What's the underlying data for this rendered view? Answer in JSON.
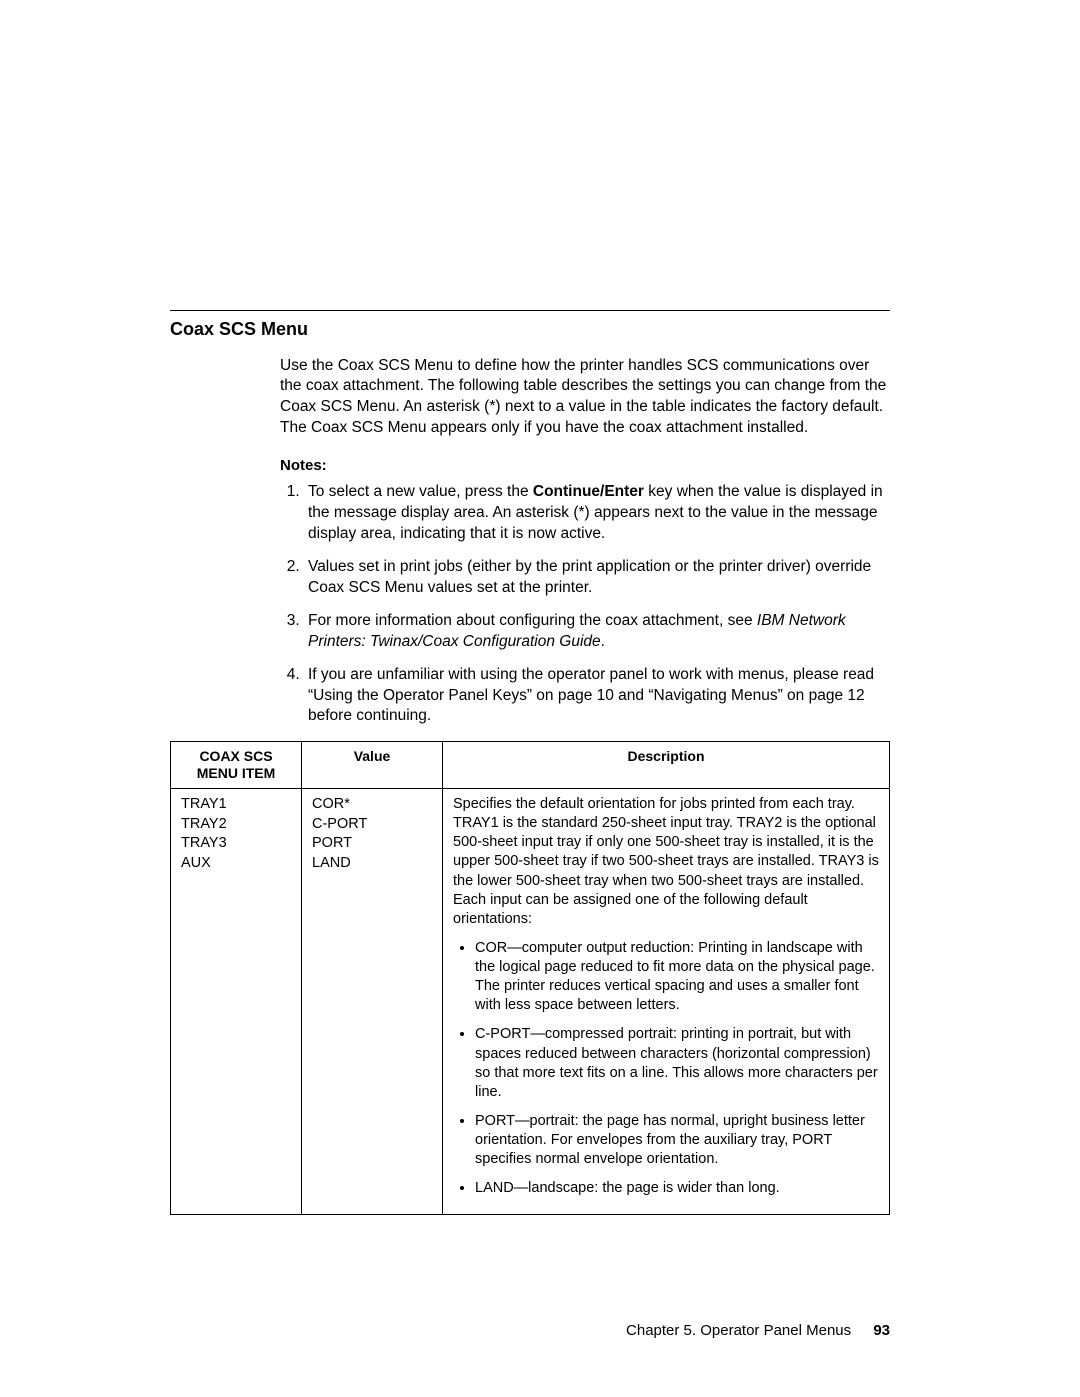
{
  "section": {
    "title": "Coax SCS Menu",
    "intro": "Use the Coax SCS Menu to define how the printer handles SCS communications over the coax attachment.  The following table describes the settings you can change from the Coax SCS Menu.  An asterisk (*) next to a value in the table indicates the factory default.  The Coax SCS Menu appears only if you have the coax attachment installed."
  },
  "notes": {
    "label": "Notes:",
    "items": {
      "n1a": "To select a new value, press the ",
      "n1b": "Continue/Enter",
      "n1c": " key when the value is displayed in the message display area.  An asterisk (*) appears next to the value in the message display area, indicating that it is now active.",
      "n2": "Values set in print jobs (either by the print application or the printer driver) override Coax SCS Menu values set at the printer.",
      "n3a": "For more information about configuring the coax attachment, see ",
      "n3b": "IBM Network Printers: Twinax/Coax Configuration Guide",
      "n3c": ".",
      "n4": "If you are unfamiliar with using the operator panel to work with menus, please read “Using the Operator Panel Keys” on page  10 and “Navigating Menus” on page  12 before continuing."
    }
  },
  "table": {
    "headers": {
      "col1a": "COAX SCS",
      "col1b": "MENU ITEM",
      "col2": "Value",
      "col3": "Description"
    },
    "row1": {
      "menu": {
        "l1": "TRAY1",
        "l2": "TRAY2",
        "l3": "TRAY3",
        "l4": "AUX"
      },
      "value": {
        "l1": "COR*",
        "l2": "C-PORT",
        "l3": "PORT",
        "l4": "LAND"
      },
      "desc_para": "Specifies the default orientation for jobs printed from each tray.  TRAY1 is the standard 250-sheet input tray.  TRAY2 is the optional 500-sheet input tray if only one 500-sheet tray is installed, it is the upper 500-sheet tray if two 500-sheet trays are installed.  TRAY3 is the lower 500-sheet tray when two 500-sheet trays are installed.  Each input can be assigned one of the following default orientations:",
      "bullets": {
        "b1": "COR—computer output reduction:  Printing in landscape with the logical page reduced to fit more data on the physical page.  The printer reduces vertical spacing and uses a smaller font with less space between letters.",
        "b2": "C-PORT—compressed portrait:  printing in portrait, but with spaces reduced between characters (horizontal compression) so that more text fits on a line.  This allows more characters per line.",
        "b3": "PORT—portrait:  the page has normal, upright business letter orientation.  For envelopes from the auxiliary tray, PORT specifies normal envelope orientation.",
        "b4": "LAND—landscape:  the page is wider than long."
      }
    }
  },
  "footer": {
    "chapter": "Chapter 5.  Operator Panel Menus",
    "page": "93"
  }
}
